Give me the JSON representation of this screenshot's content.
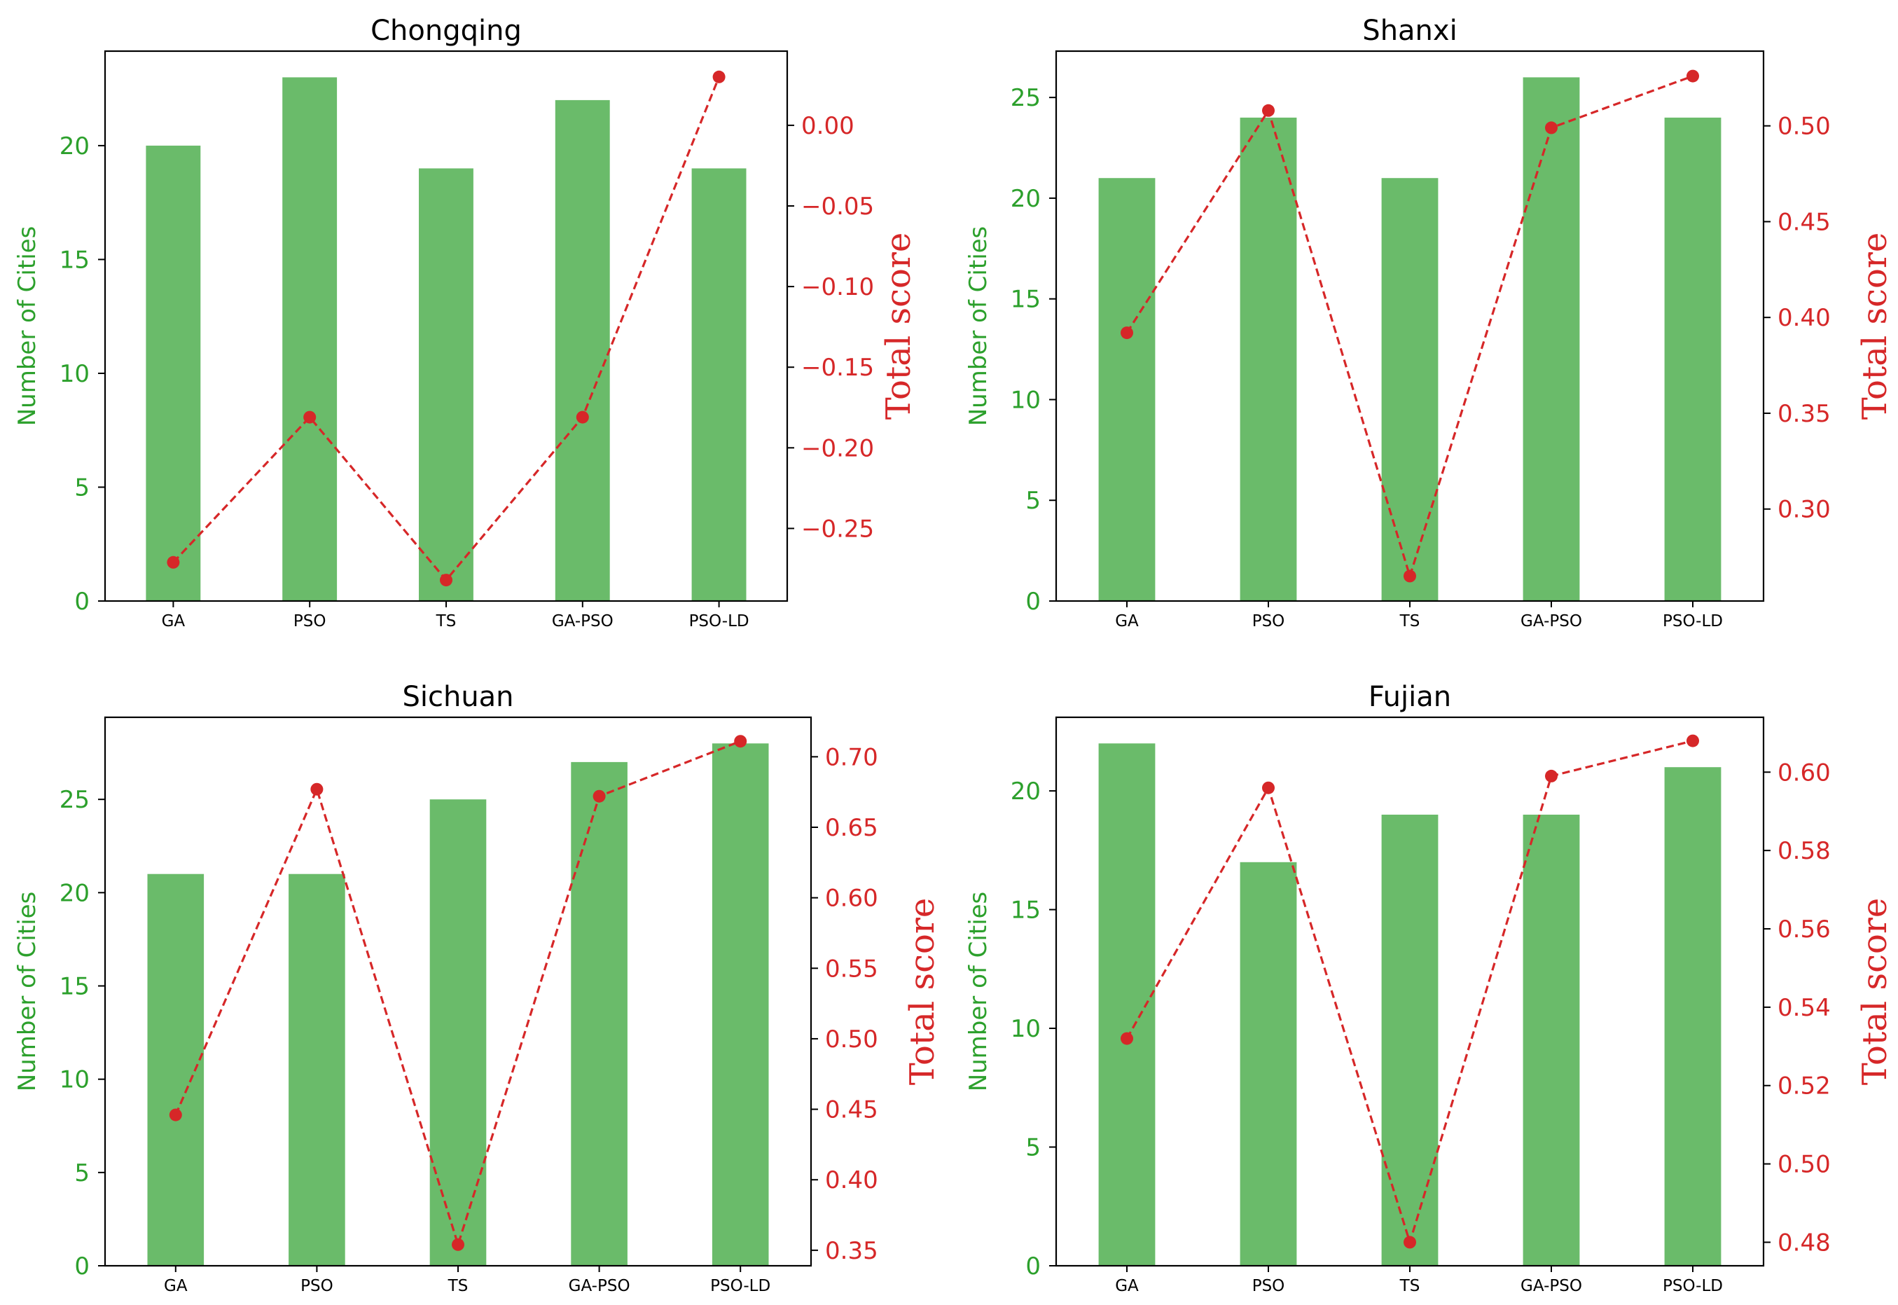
{
  "colors": {
    "bar": "#6abb6a",
    "left_axis_text": "#2ca02c",
    "line": "#d62728",
    "right_axis_text": "#d62728",
    "frame": "#000000"
  },
  "chart_data": [
    {
      "type": "bar",
      "title": "Chongqing",
      "categories": [
        "GA",
        "PSO",
        "TS",
        "GA-PSO",
        "PSO-LD"
      ],
      "ylabel": "Number of Cities",
      "ylim": [
        0,
        24.15
      ],
      "yticks": [
        0,
        5,
        10,
        15,
        20
      ],
      "ytick_labels": [
        "0",
        "5",
        "10",
        "15",
        "20"
      ],
      "values": [
        20,
        23,
        19,
        22,
        19
      ],
      "secondary": {
        "type": "line",
        "style": "dashed",
        "ylabel": "Total score",
        "ylim": [
          -0.295,
          0.046
        ],
        "yticks": [
          -0.25,
          -0.2,
          -0.15,
          -0.1,
          -0.05,
          0.0
        ],
        "ytick_labels": [
          "−0.25",
          "−0.20",
          "−0.15",
          "−0.10",
          "−0.05",
          "0.00"
        ],
        "values": [
          -0.271,
          -0.181,
          -0.282,
          -0.181,
          0.03
        ]
      }
    },
    {
      "type": "bar",
      "title": "Shanxi",
      "categories": [
        "GA",
        "PSO",
        "TS",
        "GA-PSO",
        "PSO-LD"
      ],
      "ylabel": "Number of Cities",
      "ylim": [
        0,
        27.3
      ],
      "yticks": [
        0,
        5,
        10,
        15,
        20,
        25
      ],
      "ytick_labels": [
        "0",
        "5",
        "10",
        "15",
        "20",
        "25"
      ],
      "values": [
        21,
        24,
        21,
        26,
        24
      ],
      "secondary": {
        "type": "line",
        "style": "dashed",
        "ylabel": "Total score",
        "ylim": [
          0.252,
          0.539
        ],
        "yticks": [
          0.3,
          0.35,
          0.4,
          0.45,
          0.5
        ],
        "ytick_labels": [
          "0.30",
          "0.35",
          "0.40",
          "0.45",
          "0.50"
        ],
        "values": [
          0.392,
          0.508,
          0.265,
          0.499,
          0.526
        ]
      }
    },
    {
      "type": "bar",
      "title": "Sichuan",
      "categories": [
        "GA",
        "PSO",
        "TS",
        "GA-PSO",
        "PSO-LD"
      ],
      "ylabel": "Number of Cities",
      "ylim": [
        0,
        29.4
      ],
      "yticks": [
        0,
        5,
        10,
        15,
        20,
        25
      ],
      "ytick_labels": [
        "0",
        "5",
        "10",
        "15",
        "20",
        "25"
      ],
      "values": [
        21,
        21,
        25,
        27,
        28
      ],
      "secondary": {
        "type": "line",
        "style": "dashed",
        "ylabel": "Total score",
        "ylim": [
          0.339,
          0.728
        ],
        "yticks": [
          0.35,
          0.4,
          0.45,
          0.5,
          0.55,
          0.6,
          0.65,
          0.7
        ],
        "ytick_labels": [
          "0.35",
          "0.40",
          "0.45",
          "0.50",
          "0.55",
          "0.60",
          "0.65",
          "0.70"
        ],
        "values": [
          0.446,
          0.677,
          0.354,
          0.672,
          0.711
        ]
      }
    },
    {
      "type": "bar",
      "title": "Fujian",
      "categories": [
        "GA",
        "PSO",
        "TS",
        "GA-PSO",
        "PSO-LD"
      ],
      "ylabel": "Number of Cities",
      "ylim": [
        0,
        23.1
      ],
      "yticks": [
        0,
        5,
        10,
        15,
        20
      ],
      "ytick_labels": [
        "0",
        "5",
        "10",
        "15",
        "20"
      ],
      "values": [
        22,
        17,
        19,
        19,
        21
      ],
      "secondary": {
        "type": "line",
        "style": "dashed",
        "ylabel": "Total score",
        "ylim": [
          0.474,
          0.614
        ],
        "yticks": [
          0.48,
          0.5,
          0.52,
          0.54,
          0.56,
          0.58,
          0.6
        ],
        "ytick_labels": [
          "0.48",
          "0.50",
          "0.52",
          "0.54",
          "0.56",
          "0.58",
          "0.60"
        ],
        "values": [
          0.532,
          0.596,
          0.48,
          0.599,
          0.608
        ]
      }
    }
  ]
}
